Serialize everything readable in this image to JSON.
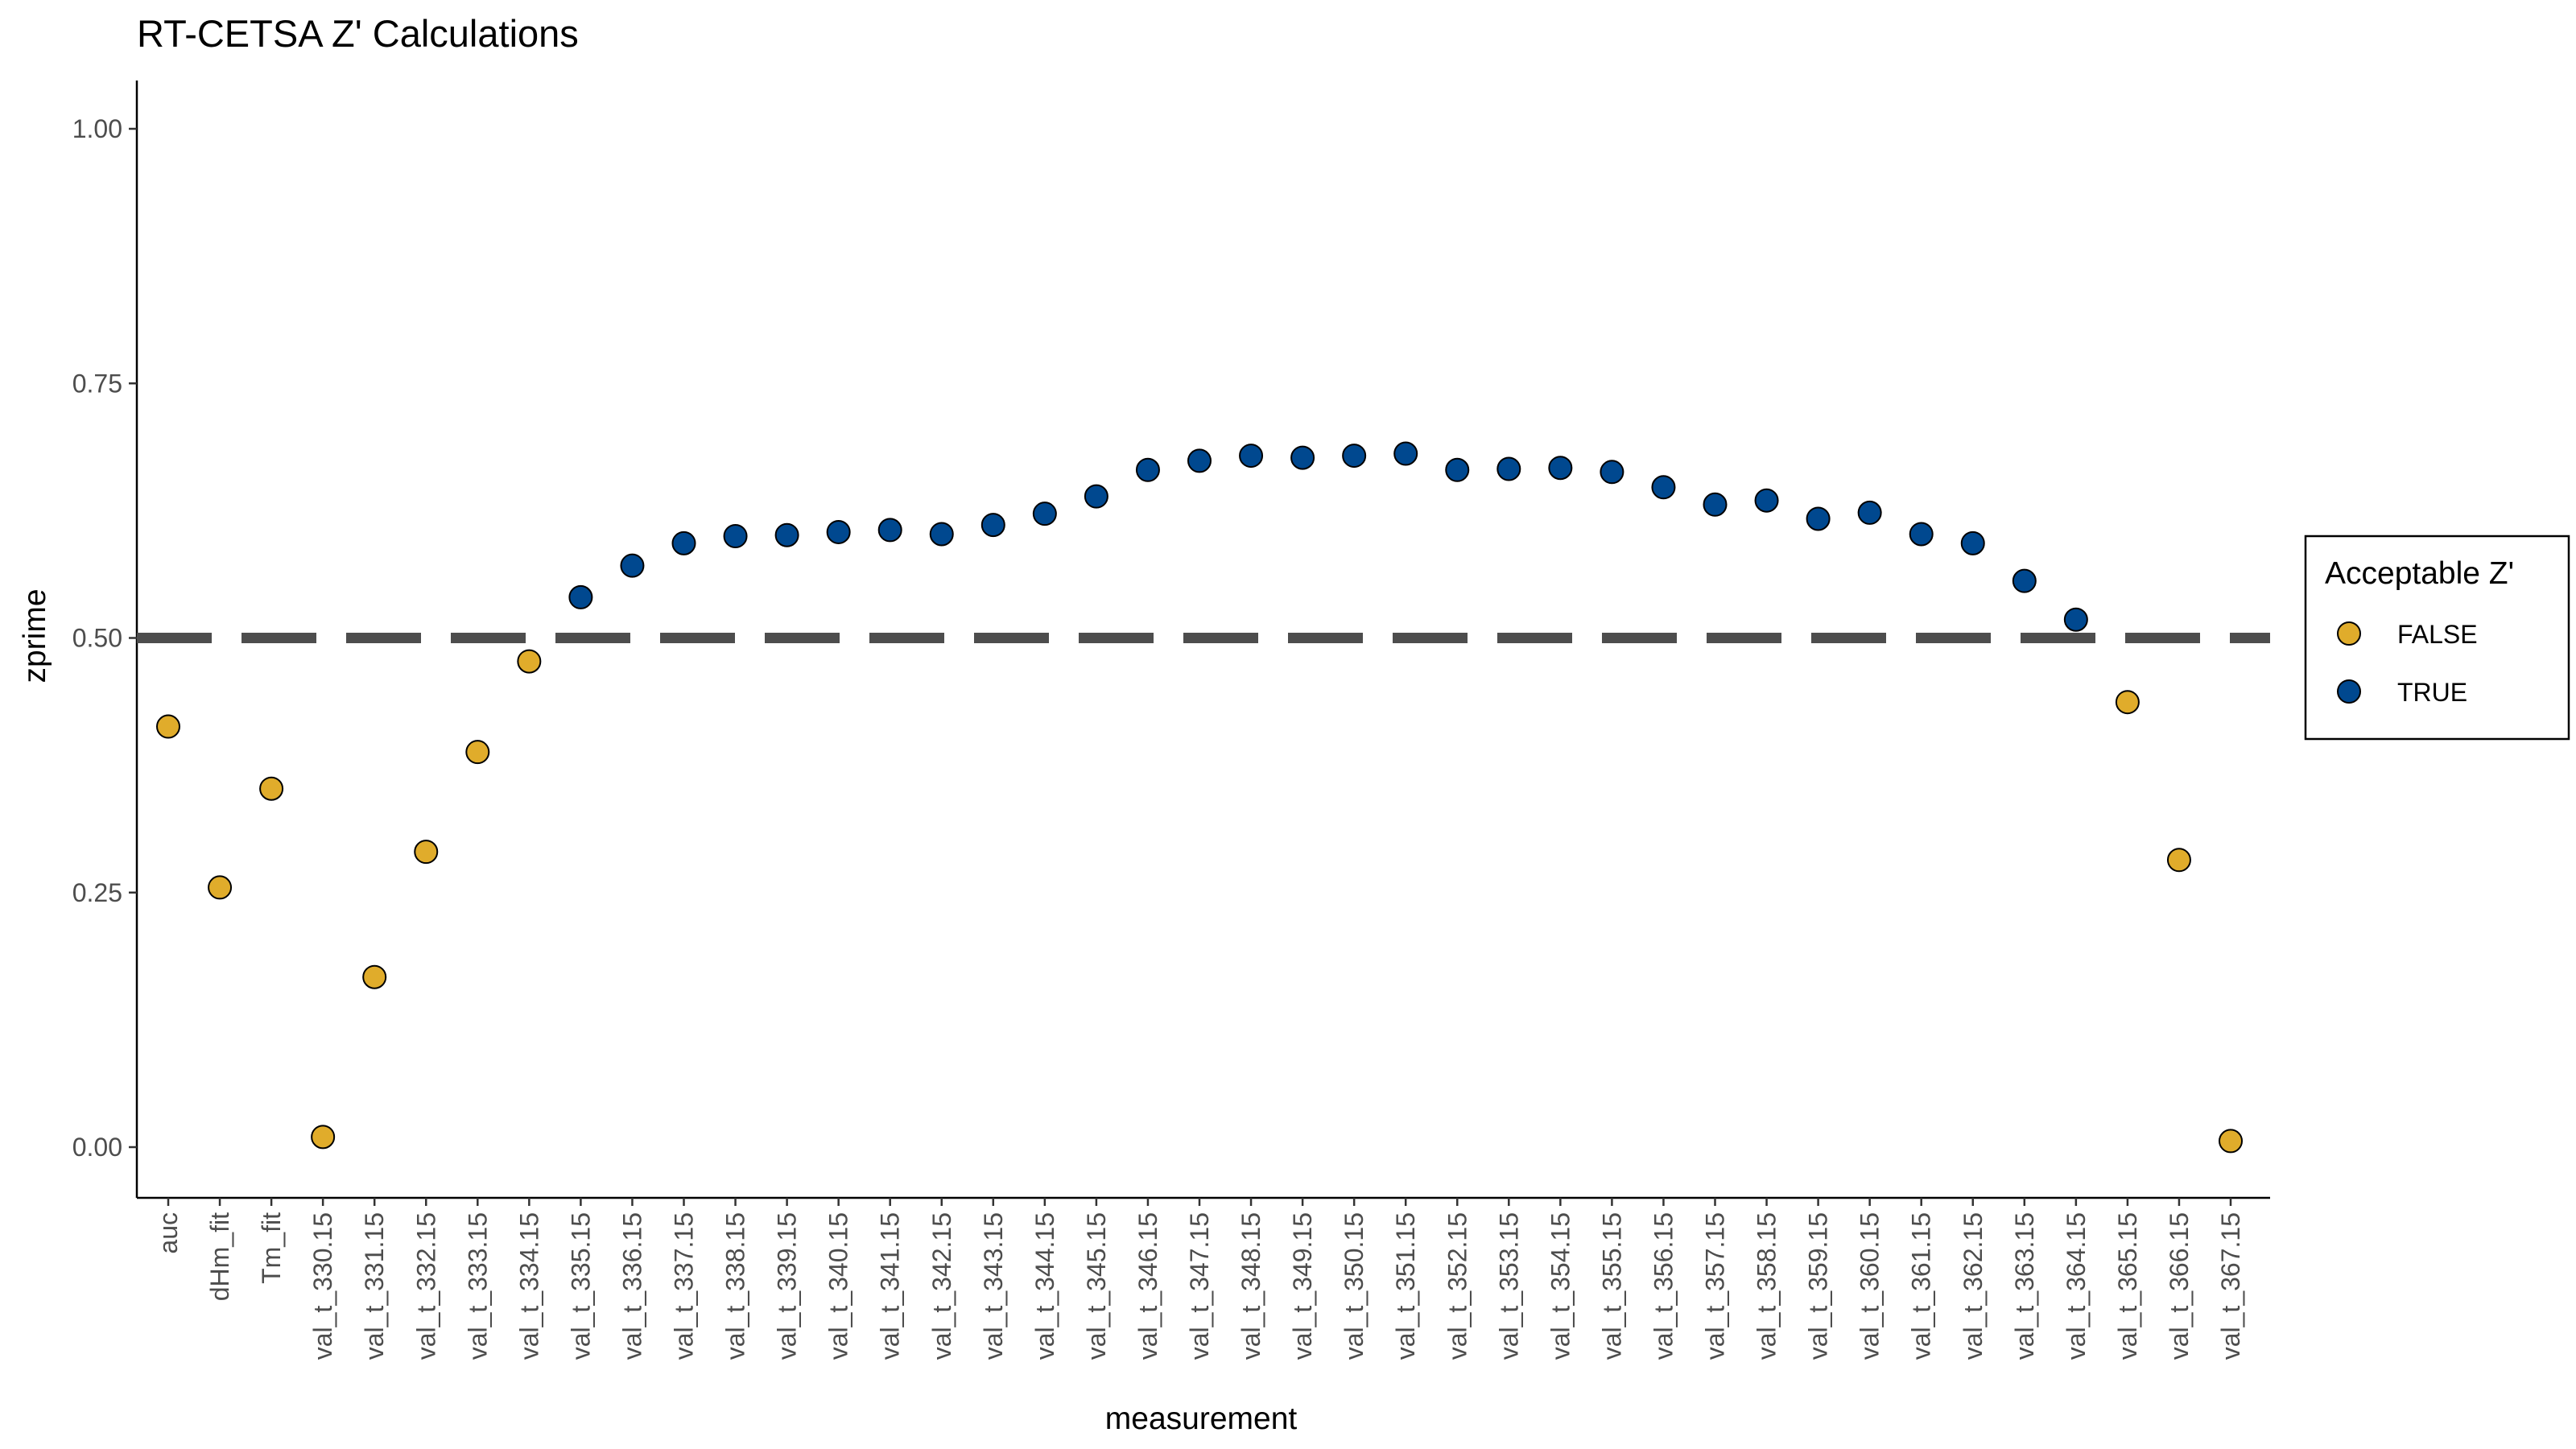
{
  "chart_data": {
    "type": "scatter",
    "title": "RT-CETSA Z' Calculations",
    "xlabel": "measurement",
    "ylabel": "zprime",
    "ylim": [
      -0.05,
      1.03
    ],
    "yticks": [
      "0.00",
      "0.25",
      "0.50",
      "0.75",
      "1.00"
    ],
    "ytick_values": [
      0,
      0.25,
      0.5,
      0.75,
      1.0
    ],
    "grid": false,
    "threshold": 0.5,
    "threshold_style": "dashed",
    "threshold_color": "#4d4d4d",
    "legend": {
      "title": "Acceptable Z'",
      "placement": "right",
      "entries": [
        {
          "label": "FALSE",
          "color": "#E0AC2B"
        },
        {
          "label": "TRUE",
          "color": "#00488F"
        }
      ]
    },
    "categories": [
      "auc",
      "dHm_fit",
      "Tm_fit",
      "val_t_330.15",
      "val_t_331.15",
      "val_t_332.15",
      "val_t_333.15",
      "val_t_334.15",
      "val_t_335.15",
      "val_t_336.15",
      "val_t_337.15",
      "val_t_338.15",
      "val_t_339.15",
      "val_t_340.15",
      "val_t_341.15",
      "val_t_342.15",
      "val_t_343.15",
      "val_t_344.15",
      "val_t_345.15",
      "val_t_346.15",
      "val_t_347.15",
      "val_t_348.15",
      "val_t_349.15",
      "val_t_350.15",
      "val_t_351.15",
      "val_t_352.15",
      "val_t_353.15",
      "val_t_354.15",
      "val_t_355.15",
      "val_t_356.15",
      "val_t_357.15",
      "val_t_358.15",
      "val_t_359.15",
      "val_t_360.15",
      "val_t_361.15",
      "val_t_362.15",
      "val_t_363.15",
      "val_t_364.15",
      "val_t_365.15",
      "val_t_366.15",
      "val_t_367.15"
    ],
    "values": [
      0.413,
      0.255,
      0.352,
      0.01,
      0.167,
      0.29,
      0.388,
      0.477,
      0.54,
      0.571,
      0.593,
      0.6,
      0.601,
      0.604,
      0.606,
      0.602,
      0.611,
      0.622,
      0.639,
      0.665,
      0.674,
      0.679,
      0.677,
      0.679,
      0.681,
      0.665,
      0.666,
      0.667,
      0.663,
      0.648,
      0.631,
      0.635,
      0.617,
      0.623,
      0.602,
      0.593,
      0.556,
      0.518,
      0.437,
      0.282,
      0.006
    ],
    "acceptable": [
      "FALSE",
      "FALSE",
      "FALSE",
      "FALSE",
      "FALSE",
      "FALSE",
      "FALSE",
      "FALSE",
      "TRUE",
      "TRUE",
      "TRUE",
      "TRUE",
      "TRUE",
      "TRUE",
      "TRUE",
      "TRUE",
      "TRUE",
      "TRUE",
      "TRUE",
      "TRUE",
      "TRUE",
      "TRUE",
      "TRUE",
      "TRUE",
      "TRUE",
      "TRUE",
      "TRUE",
      "TRUE",
      "TRUE",
      "TRUE",
      "TRUE",
      "TRUE",
      "TRUE",
      "TRUE",
      "TRUE",
      "TRUE",
      "TRUE",
      "TRUE",
      "FALSE",
      "FALSE",
      "FALSE"
    ]
  }
}
